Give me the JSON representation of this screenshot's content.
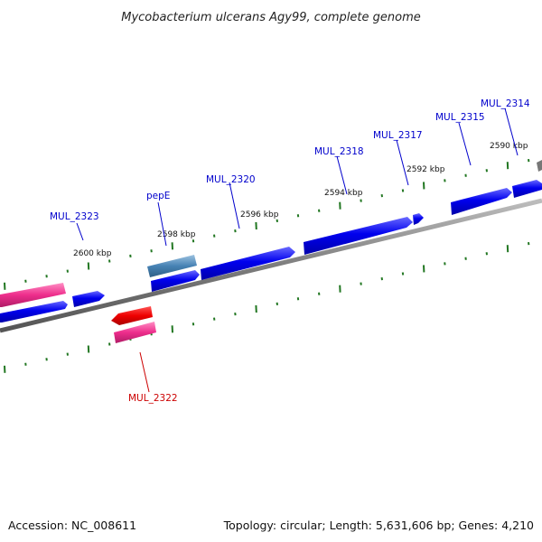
{
  "title": "Mycobacterium ulcerans Agy99, complete genome",
  "footer": {
    "accession": "Accession: NC_008611",
    "stats": "Topology: circular; Length: 5,631,606 bp; Genes: 4,210"
  },
  "colors": {
    "forward_gene": "#0000ee",
    "forward_gene_alt": "#4682b4",
    "reverse_gene": "#ee0000",
    "rna_gene": "#ee2d8c",
    "backbone": "#7d7d7d",
    "ticks": "#227722",
    "forward_label": "#0000cc",
    "reverse_label": "#cc0000"
  },
  "kbp_labels": [
    "2600 kbp",
    "2598 kbp",
    "2596 kbp",
    "2594 kbp",
    "2592 kbp",
    "2590 kbp"
  ],
  "gene_labels_forward": [
    "MUL_2323",
    "pepE",
    "MUL_2320",
    "MUL_2318",
    "MUL_2317",
    "MUL_2315",
    "MUL_2314"
  ],
  "gene_labels_reverse": [
    "MUL_2322"
  ]
}
